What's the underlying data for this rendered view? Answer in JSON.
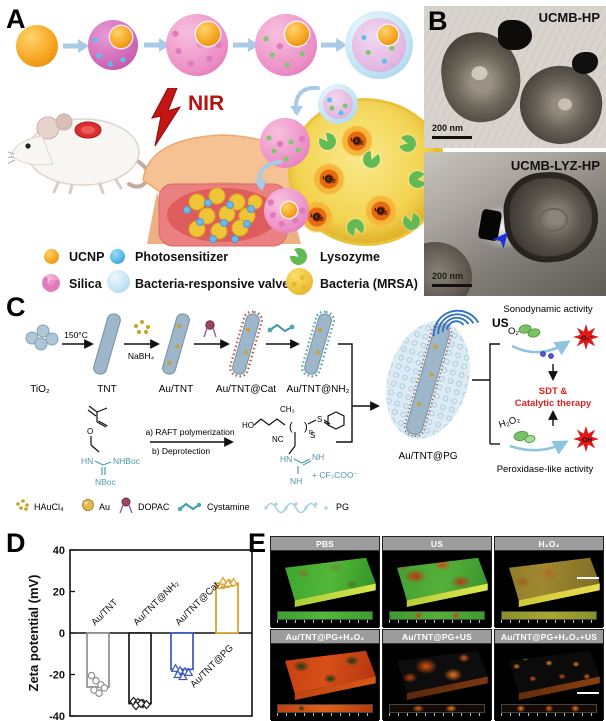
{
  "panelA": {
    "label": "A",
    "nir": "NIR",
    "ros": "¹O₂",
    "legend": [
      {
        "name": "UCNP"
      },
      {
        "name": "Photosensitizer"
      },
      {
        "name": "Lysozyme"
      },
      {
        "name": "Silica"
      },
      {
        "name": "Bacteria-responsive valve"
      },
      {
        "name": "Bacteria (MRSA)"
      }
    ]
  },
  "panelB": {
    "label": "B",
    "images": [
      {
        "title": "UCMB-HP",
        "scale_bar": "200 nm"
      },
      {
        "title": "UCMB-LYZ-HP",
        "scale_bar": "200 nm"
      }
    ]
  },
  "panelC": {
    "label": "C",
    "flow": {
      "start": "TiO₂",
      "step1_condition": "150°C",
      "step1": "TNT",
      "step2_reagent": "NaBH₄",
      "step2": "Au/TNT",
      "step3": "Au/TNT@Cat",
      "step4": "Au/TNT@NH₂",
      "product": "Au/TNT@PG",
      "us": "US"
    },
    "polymerization": {
      "line_a": "a) RAFT polymerization",
      "line_b": "b) Deprotection",
      "monomer": {
        "o": "O",
        "hn": "HN",
        "nhboc": "NHBoc",
        "nboc": "NBoc"
      },
      "polymer": {
        "ho": "HO",
        "ch3": "CH₃",
        "nc": "NC",
        "n": "n",
        "s": "S",
        "hn": "HN",
        "nh_imine": "NH",
        "nh": "NH",
        "counterion": "+ CF₃COO⁻"
      }
    },
    "outcomes": {
      "sono_title": "Sonodynamic activity",
      "o2": "O₂",
      "sono_ros": "·O₂⁻",
      "sdt_line1": "SDT &",
      "sdt_line2": "Catalytic therapy",
      "h2o2": "H₂O₂",
      "perox_ros": "·OH",
      "perox_title": "Peroxidase-like activity"
    },
    "legend": [
      {
        "name": "HAuCl₄"
      },
      {
        "name": "Au"
      },
      {
        "name": "DOPAC"
      },
      {
        "name": "Cystamine"
      },
      {
        "name": "PG"
      }
    ]
  },
  "panelD": {
    "label": "D"
  },
  "chart_data": {
    "type": "bar",
    "categories": [
      "Au/TNT",
      "Au/TNT@NH₂",
      "Au/TNT@Cat",
      "Au/TNT@PG"
    ],
    "values": [
      -26,
      -34,
      -17.5,
      24
    ],
    "points": [
      [
        -20.5,
        -23,
        -25,
        -26.5,
        -27.5,
        -29
      ],
      [
        -33,
        -33.5,
        -34,
        -34.5,
        -35,
        -34
      ],
      [
        -17,
        -18,
        -18.5,
        -19,
        -20,
        -21
      ],
      [
        23,
        23.5,
        24,
        24.5,
        25,
        24
      ]
    ],
    "markers": [
      "circle",
      "diamond",
      "triangle",
      "triangle"
    ],
    "colors": [
      "#909090",
      "#1a1a1a",
      "#3a55c0",
      "#dd9f25"
    ],
    "title": "",
    "xlabel": "",
    "ylabel": "Zeta potential (mV)",
    "ylim": [
      -40,
      40
    ],
    "yticks": [
      -40,
      -20,
      0,
      20,
      40
    ],
    "grid": false,
    "legend_position": "none"
  },
  "panelE": {
    "label": "E",
    "cells": [
      {
        "label": "PBS"
      },
      {
        "label": "US"
      },
      {
        "label": "H₂O₂"
      },
      {
        "label": "Au/TNT@PG+H₂O₂"
      },
      {
        "label": "Au/TNT@PG+US"
      },
      {
        "label": "Au/TNT@PG+H₂O₂+US"
      }
    ]
  },
  "colors": {
    "nir_red": "#b51212",
    "rod_blue_gray": "#9db6c9",
    "gold": "#c9a227",
    "accent_red_text": "#e02020",
    "us_blue": "#2f6fc2",
    "chart_blue": "#3a55c0",
    "chart_orange": "#dd9f25"
  }
}
